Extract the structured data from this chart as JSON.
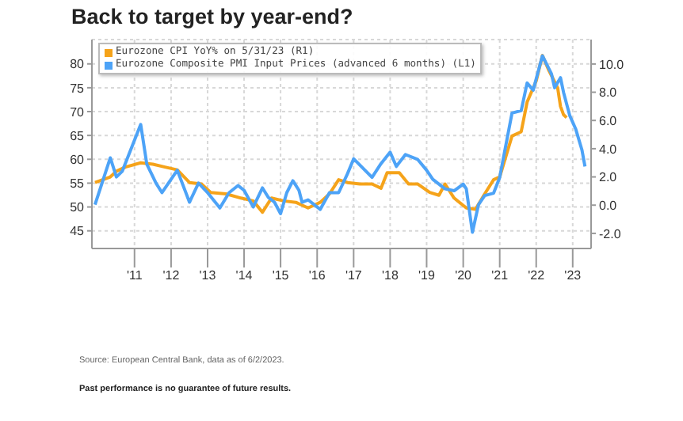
{
  "chart_data": {
    "type": "line",
    "title": "Back to target by year-end?",
    "xlim": [
      "2010-05",
      "2024-01"
    ],
    "xticks": [
      {
        "value": "2011-07",
        "label": "'11"
      },
      {
        "value": "2012-07",
        "label": "'12"
      },
      {
        "value": "2013-07",
        "label": "'13"
      },
      {
        "value": "2014-07",
        "label": "'14"
      },
      {
        "value": "2015-07",
        "label": "'15"
      },
      {
        "value": "2016-07",
        "label": "'16"
      },
      {
        "value": "2017-07",
        "label": "'17"
      },
      {
        "value": "2018-07",
        "label": "'18"
      },
      {
        "value": "2019-07",
        "label": "'19"
      },
      {
        "value": "2020-07",
        "label": "'20"
      },
      {
        "value": "2021-07",
        "label": "'21"
      },
      {
        "value": "2022-07",
        "label": "'22"
      },
      {
        "value": "2023-07",
        "label": "'23"
      }
    ],
    "ylim": [
      41.3,
      85.1
    ],
    "yticks": [
      45,
      50,
      55,
      60,
      65,
      70,
      75,
      80
    ],
    "y2lim": [
      -3.07,
      11.73
    ],
    "y2ticks": [
      {
        "value": -2,
        "label": "-2.0"
      },
      {
        "value": 0,
        "label": "0.0"
      },
      {
        "value": 2,
        "label": "2.0"
      },
      {
        "value": 4,
        "label": "4.0"
      },
      {
        "value": 6,
        "label": "6.0"
      },
      {
        "value": 8,
        "label": "8.0"
      },
      {
        "value": 10,
        "label": "10.0"
      }
    ],
    "grid": true,
    "legend": "top left",
    "marker": "none",
    "line_style": "solid",
    "series": [
      {
        "name": "Eurozone CPI YoY% on 5/31/23 (R1)",
        "color": "#f5a31a",
        "axis": "y2",
        "x": [
          "2010-06",
          "2010-11",
          "2011-01",
          "2011-04",
          "2011-09",
          "2012-01",
          "2012-05",
          "2012-09",
          "2013-01",
          "2013-05",
          "2013-08",
          "2014-01",
          "2014-06",
          "2014-10",
          "2015-01",
          "2015-04",
          "2015-08",
          "2015-12",
          "2016-04",
          "2016-08",
          "2016-11",
          "2017-02",
          "2017-05",
          "2017-09",
          "2018-01",
          "2018-04",
          "2018-06",
          "2018-10",
          "2019-01",
          "2019-04",
          "2019-08",
          "2019-11",
          "2020-01",
          "2020-04",
          "2020-08",
          "2020-11",
          "2021-02",
          "2021-05",
          "2021-07",
          "2021-11",
          "2022-02",
          "2022-04",
          "2022-07",
          "2022-09",
          "2022-11",
          "2023-02",
          "2023-03",
          "2023-04",
          "2023-05"
        ],
        "values": [
          1.6,
          2.0,
          2.4,
          2.7,
          3.0,
          2.9,
          2.7,
          2.5,
          1.6,
          1.5,
          0.9,
          0.8,
          0.5,
          0.3,
          -0.5,
          0.5,
          0.3,
          0.2,
          -0.2,
          0.2,
          0.8,
          1.8,
          1.6,
          1.5,
          1.5,
          1.2,
          2.3,
          2.3,
          1.5,
          1.5,
          0.9,
          0.7,
          1.5,
          0.5,
          -0.2,
          -0.3,
          0.8,
          1.8,
          2.0,
          4.9,
          5.2,
          7.3,
          8.8,
          10.6,
          9.6,
          8.3,
          7.0,
          6.4,
          6.2
        ]
      },
      {
        "name": "Eurozone Composite PMI Input Prices (advanced 6 months) (L1)",
        "color": "#4da3f7",
        "x": [
          "2010-06",
          "2010-11",
          "2011-01",
          "2011-03",
          "2011-09",
          "2011-11",
          "2012-02",
          "2012-04",
          "2012-09",
          "2013-01",
          "2013-04",
          "2013-07",
          "2013-11",
          "2014-02",
          "2014-05",
          "2014-07",
          "2014-10",
          "2015-01",
          "2015-03",
          "2015-05",
          "2015-07",
          "2015-09",
          "2015-11",
          "2016-01",
          "2016-02",
          "2016-04",
          "2016-08",
          "2016-11",
          "2017-02",
          "2017-05",
          "2017-07",
          "2018-01",
          "2018-04",
          "2018-07",
          "2018-09",
          "2018-12",
          "2019-04",
          "2019-07",
          "2019-09",
          "2020-01",
          "2020-04",
          "2020-07",
          "2020-08",
          "2020-10",
          "2020-12",
          "2021-02",
          "2021-05",
          "2021-07",
          "2021-11",
          "2022-02",
          "2022-04",
          "2022-06",
          "2022-09",
          "2022-12",
          "2023-01",
          "2023-03",
          "2023-04",
          "2023-06",
          "2023-08",
          "2023-10",
          "2023-11"
        ],
        "values": [
          50.5,
          60.3,
          56.3,
          57.5,
          67.3,
          59.0,
          55.0,
          53.0,
          57.7,
          51.0,
          55.0,
          53.0,
          49.8,
          53.0,
          54.5,
          53.5,
          50.0,
          54.0,
          52.0,
          51.0,
          48.6,
          53.0,
          55.5,
          53.5,
          51.0,
          51.5,
          49.5,
          53.0,
          53.0,
          57.0,
          60.1,
          56.2,
          59.1,
          61.5,
          58.5,
          61.0,
          60.0,
          57.7,
          55.8,
          53.8,
          53.4,
          54.8,
          53.8,
          44.7,
          50.5,
          52.4,
          52.9,
          56.2,
          69.7,
          70.2,
          76.0,
          74.5,
          81.7,
          77.9,
          75.0,
          77.1,
          74.0,
          69.2,
          66.3,
          62.0,
          58.5
        ]
      }
    ],
    "annotations": [
      "Source: European Central Bank, data as of 6/2/2023.",
      "Past performance is no guarantee of future results."
    ]
  }
}
